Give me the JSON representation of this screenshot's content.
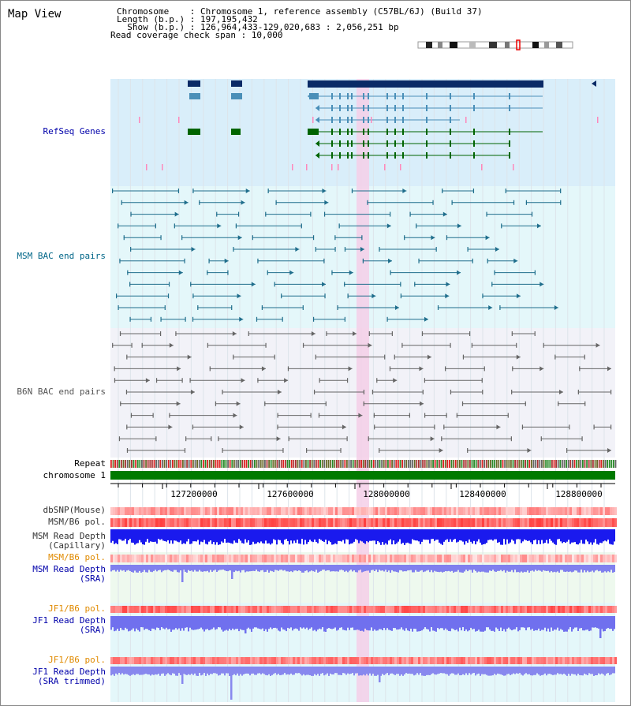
{
  "title": "Map View",
  "header": {
    "chromosome_line": "Chromosome    : Chromosome 1, reference assembly (C57BL/6J) (Build 37)",
    "length_line": "Length (b.p.) : 197,195,432",
    "show_line": "  Show (b.p.) : 126,964,433-129,020,683 : 2,056,251 bp",
    "coverage_line": "Read coverage check span : 10,000"
  },
  "tracks": {
    "refseq": "RefSeq Genes",
    "msm_bac": "MSM BAC end pairs",
    "b6n_bac": "B6N BAC end pairs",
    "repeat": "Repeat",
    "chromosome": "chromosome 1",
    "dbsnp": "dbSNP(Mouse)",
    "msm_b6_pol": "MSM/B6 pol.",
    "msm_depth_cap_1": "MSM Read Depth",
    "msm_depth_cap_2": "(Capillary)",
    "msm_b6_pol2": "MSM/B6 pol.",
    "msm_depth_sra_1": "MSM Read Depth",
    "msm_depth_sra_2": "(SRA)",
    "jf1_pol1": "JF1/B6 pol.",
    "jf1_depth_sra_1": "JF1 Read Depth",
    "jf1_depth_sra_2": "(SRA)",
    "jf1_pol2": "JF1/B6 pol.",
    "jf1_depth_trim_1": "JF1 Read Depth",
    "jf1_depth_trim_2": "(SRA trimmed)"
  },
  "axis_ticks": [
    "127200000",
    "127600000",
    "128000000",
    "128400000",
    "128800000"
  ],
  "colors": {
    "refseq_bg": "#d9eefa",
    "msm_bg": "#e4f7fa",
    "b6n_bg": "#f2f2f8",
    "highlight": "#f5cfe8",
    "label_blue": "#0000aa",
    "label_teal": "#006688",
    "label_orange": "#e08a00",
    "gene_navy": "#0a2a66",
    "gene_teal": "#4a8fb8",
    "gene_green": "#006400"
  }
}
